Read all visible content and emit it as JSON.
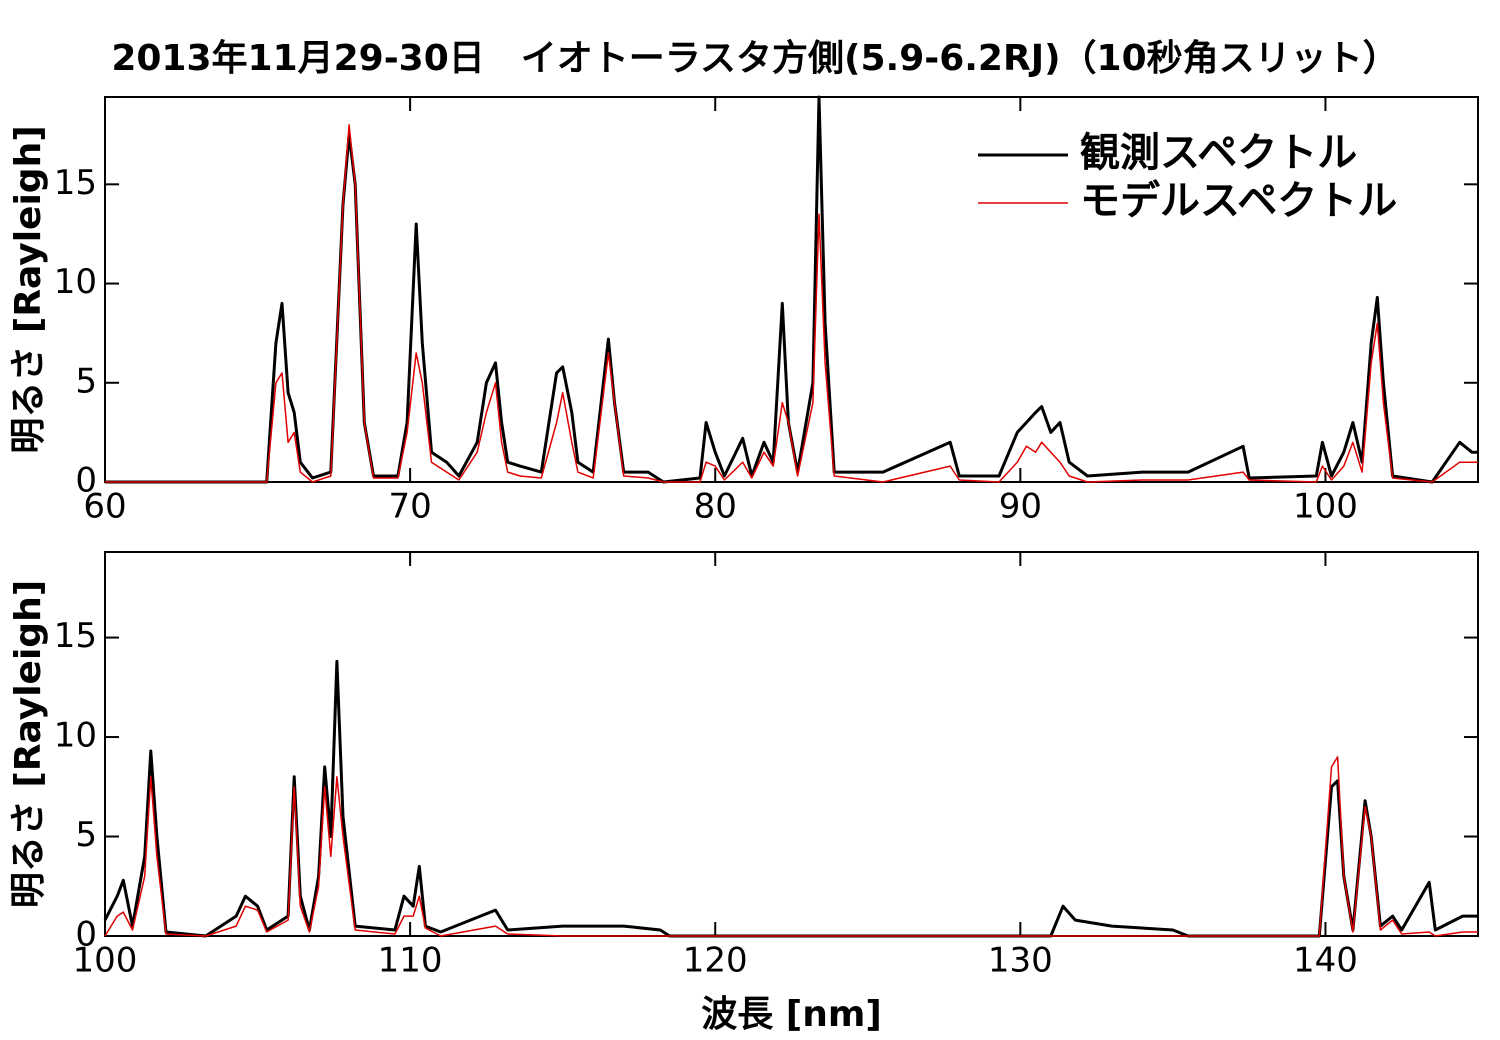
{
  "chart_data": [
    {
      "type": "line",
      "title": "2013年11月29-30日　イオトーラスタ方側(5.9-6.2RJ)（10秒角スリット）",
      "ylabel": "明るさ [Rayleigh]",
      "xlim": [
        60,
        105
      ],
      "ylim": [
        0,
        19.4
      ],
      "xticks": [
        60,
        70,
        80,
        90,
        100
      ],
      "yticks": [
        0,
        5,
        10,
        15
      ],
      "legend": "upper right",
      "x": [
        60,
        65.3,
        65.6,
        65.8,
        66.0,
        66.2,
        66.4,
        66.8,
        67.4,
        67.8,
        68.0,
        68.2,
        68.5,
        68.8,
        69.6,
        69.9,
        70.2,
        70.4,
        70.7,
        71.2,
        71.6,
        72.2,
        72.5,
        72.8,
        73.0,
        73.2,
        73.6,
        74.3,
        74.8,
        75.0,
        75.3,
        75.5,
        76.0,
        76.5,
        76.7,
        77.0,
        77.8,
        78.3,
        79.5,
        79.7,
        80.0,
        80.3,
        80.9,
        81.2,
        81.6,
        81.9,
        82.2,
        82.4,
        82.7,
        83.2,
        83.4,
        83.6,
        83.9,
        85.5,
        87.7,
        88.0,
        89.3,
        89.9,
        90.2,
        90.5,
        90.7,
        91.0,
        91.3,
        91.6,
        92.2,
        94.0,
        95.5,
        97.3,
        97.5,
        99.7,
        99.9,
        100.2,
        100.6,
        100.9,
        101.2,
        101.5,
        101.7,
        101.9,
        102.2,
        103.5,
        104.4,
        104.8,
        105
      ],
      "series": [
        {
          "name": "観測スペクトル",
          "color": "#000000",
          "values": [
            0,
            0,
            7,
            9,
            4.5,
            3.5,
            1,
            0.2,
            0.5,
            14,
            17.5,
            15,
            3,
            0.3,
            0.3,
            3,
            13,
            7,
            1.5,
            1,
            0.3,
            2,
            5,
            6,
            3,
            1,
            0.8,
            0.5,
            5.5,
            5.8,
            3.5,
            1,
            0.5,
            7.2,
            4,
            0.5,
            0.5,
            0,
            0.2,
            3,
            1.5,
            0.3,
            2.2,
            0.3,
            2,
            1,
            9,
            3,
            0.5,
            5,
            19.4,
            8,
            0.5,
            0.5,
            2,
            0.3,
            0.3,
            2.5,
            3,
            3.5,
            3.8,
            2.5,
            3,
            1,
            0.3,
            0.5,
            0.5,
            1.8,
            0.2,
            0.3,
            2,
            0.3,
            1.5,
            3,
            1,
            7,
            9.3,
            5,
            0.3,
            0,
            2,
            1.5,
            1.5
          ]
        },
        {
          "name": "モデルスペクトル",
          "color": "#e00000",
          "values": [
            0,
            0,
            5,
            5.5,
            2,
            2.5,
            0.5,
            0,
            0.3,
            14,
            18,
            15,
            3,
            0.2,
            0.2,
            2.5,
            6.5,
            5,
            1,
            0.5,
            0.1,
            1.5,
            3.5,
            5,
            2,
            0.5,
            0.3,
            0.2,
            3,
            4.5,
            2,
            0.5,
            0.2,
            6.5,
            4,
            0.3,
            0.2,
            0,
            0,
            1,
            0.8,
            0.1,
            1,
            0.2,
            1.5,
            0.8,
            4,
            3,
            0.3,
            4,
            13.5,
            6,
            0.3,
            0,
            0.8,
            0.1,
            0,
            1,
            1.8,
            1.5,
            2,
            1.5,
            1,
            0.3,
            0,
            0.1,
            0.1,
            0.5,
            0.1,
            0,
            0.8,
            0.1,
            0.8,
            2,
            0.5,
            6,
            8,
            4,
            0.2,
            0,
            1,
            1,
            1
          ]
        }
      ]
    },
    {
      "type": "line",
      "ylabel": "明るさ [Rayleigh]",
      "xlabel": "波長 [nm]",
      "xlim": [
        100,
        145
      ],
      "ylim": [
        0,
        19.3
      ],
      "xticks": [
        100,
        110,
        120,
        130,
        140
      ],
      "yticks": [
        0,
        5,
        10,
        15
      ],
      "x": [
        100,
        100.4,
        100.6,
        100.9,
        101.3,
        101.5,
        101.7,
        102.0,
        103.3,
        104.3,
        104.6,
        105.0,
        105.3,
        106.0,
        106.2,
        106.4,
        106.7,
        107.0,
        107.2,
        107.4,
        107.6,
        107.8,
        108.2,
        109.5,
        109.8,
        110.1,
        110.3,
        110.5,
        111.0,
        112.8,
        113.2,
        115.0,
        117.0,
        118.2,
        118.5,
        131.0,
        131.4,
        131.8,
        133.0,
        135.0,
        135.5,
        139.8,
        140.2,
        140.4,
        140.6,
        140.9,
        141.3,
        141.5,
        141.8,
        142.2,
        142.5,
        143.4,
        143.6,
        144.5,
        145
      ],
      "series": [
        {
          "color": "#000000",
          "values": [
            0.8,
            2,
            2.8,
            0.5,
            4,
            9.3,
            5,
            0.2,
            0,
            1,
            2,
            1.5,
            0.3,
            1,
            8,
            2,
            0.3,
            3,
            8.5,
            5,
            13.8,
            6,
            0.5,
            0.3,
            2,
            1.5,
            3.5,
            0.5,
            0.2,
            1.3,
            0.3,
            0.5,
            0.5,
            0.3,
            0,
            0,
            1.5,
            0.8,
            0.5,
            0.3,
            0,
            0,
            7.5,
            7.8,
            3,
            0.3,
            6.8,
            5,
            0.5,
            1,
            0.3,
            2.7,
            0.3,
            1,
            1
          ]
        },
        {
          "color": "#e00000",
          "values": [
            0,
            1,
            1.2,
            0.3,
            3,
            8,
            4,
            0.1,
            0,
            0.5,
            1.5,
            1.3,
            0.2,
            0.8,
            7.5,
            1.5,
            0.2,
            2.5,
            7.5,
            4,
            8,
            5,
            0.3,
            0.1,
            1,
            1,
            2,
            0.4,
            0,
            0.5,
            0.1,
            0,
            0,
            0,
            0,
            0,
            0,
            0,
            0,
            0,
            0,
            0,
            8.5,
            9,
            3,
            0.2,
            6.5,
            5,
            0.3,
            0.8,
            0.1,
            0.2,
            0,
            0.2,
            0.2
          ]
        }
      ]
    }
  ]
}
